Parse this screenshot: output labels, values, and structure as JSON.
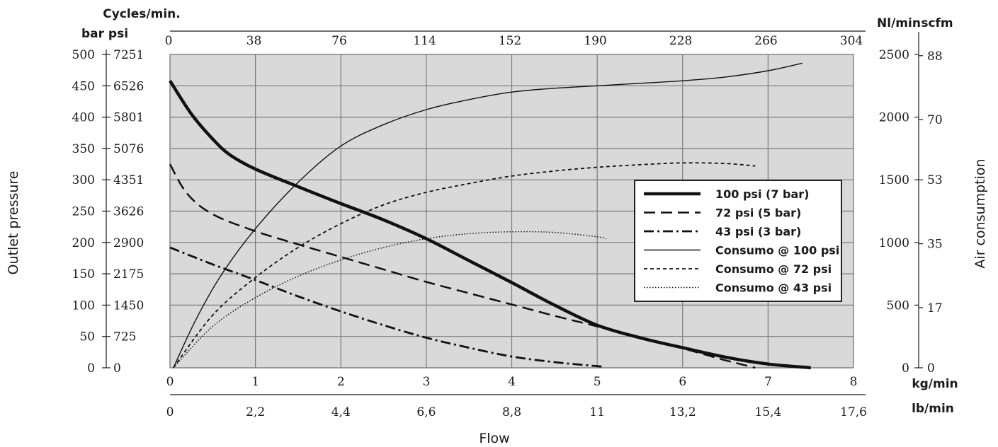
{
  "chart_data": {
    "type": "line",
    "title": "",
    "xlabel": "Flow",
    "ylabel_left": "Outlet pressure",
    "ylabel_right": "Air consumption",
    "x_top_label": "Cycles/min.",
    "x_unit_kg": "kg/min",
    "x_unit_lb": "lb/min",
    "y_left_units": "bar psi",
    "y_right_units": [
      "Nl/min",
      "scfm"
    ],
    "xlim": [
      0,
      8
    ],
    "ylim_bar": [
      0,
      500
    ],
    "ylim_nl": [
      0,
      2500
    ],
    "grid": true,
    "legend_position": "center-right",
    "x_kg_ticks": [
      "0",
      "1",
      "2",
      "3",
      "4",
      "5",
      "6",
      "7",
      "8"
    ],
    "x_lb_ticks": [
      "0",
      "2,2",
      "4,4",
      "6,6",
      "8,8",
      "11",
      "13,2",
      "15,4",
      "17,6"
    ],
    "x_cycles_ticks": [
      "0",
      "38",
      "76",
      "114",
      "152",
      "190",
      "228",
      "266",
      "304"
    ],
    "y_bar_ticks": [
      "0",
      "50",
      "100",
      "150",
      "200",
      "250",
      "300",
      "350",
      "400",
      "450",
      "500"
    ],
    "y_psi_ticks": [
      "0",
      "725",
      "1450",
      "2175",
      "2900",
      "3626",
      "4351",
      "5076",
      "5801",
      "6526",
      "7251"
    ],
    "y_nl_ticks": [
      "0",
      "500",
      "1000",
      "1500",
      "2000",
      "2500"
    ],
    "y_scfm_ticks": [
      {
        "label": "0",
        "nl": 0
      },
      {
        "label": "17",
        "nl": 480
      },
      {
        "label": "35",
        "nl": 990
      },
      {
        "label": "53",
        "nl": 1500
      },
      {
        "label": "70",
        "nl": 1980
      },
      {
        "label": "88",
        "nl": 2490
      }
    ],
    "series": [
      {
        "name": "100 psi (7 bar)",
        "axis": "pressure",
        "style": "thick",
        "x": [
          0,
          0.25,
          0.5,
          0.7,
          1,
          1.5,
          2,
          2.5,
          3,
          3.5,
          4,
          4.5,
          5,
          5.5,
          6,
          6.5,
          7,
          7.5
        ],
        "y": [
          458,
          405,
          365,
          340,
          317,
          289,
          262,
          236,
          206,
          171,
          136,
          100,
          68,
          48,
          32,
          17,
          6,
          0
        ]
      },
      {
        "name": "72 psi (5 bar)",
        "axis": "pressure",
        "style": "dashed",
        "x": [
          0,
          0.2,
          0.5,
          1,
          1.5,
          2,
          2.5,
          3,
          3.5,
          4,
          4.5,
          5,
          5.5,
          6,
          6.5,
          6.85
        ],
        "y": [
          325,
          278,
          245,
          218,
          197,
          177,
          157,
          137,
          119,
          101,
          83,
          66,
          48,
          31,
          12,
          0
        ]
      },
      {
        "name": "43 psi (3 bar)",
        "axis": "pressure",
        "style": "dashdot",
        "x": [
          0,
          0.5,
          1,
          1.5,
          2,
          2.5,
          3,
          3.5,
          4,
          4.5,
          5.05
        ],
        "y": [
          192,
          165,
          140,
          114,
          90,
          68,
          48,
          32,
          18,
          9,
          2
        ]
      },
      {
        "name": "Consumo @ 100 psi",
        "axis": "consumption",
        "style": "solid",
        "x": [
          0.04,
          0.3,
          0.6,
          1,
          1.5,
          2,
          2.5,
          3,
          3.5,
          4,
          4.5,
          5,
          5.5,
          6,
          6.5,
          7,
          7.4
        ],
        "y": [
          0,
          380,
          740,
          1110,
          1480,
          1770,
          1940,
          2060,
          2140,
          2200,
          2230,
          2250,
          2270,
          2290,
          2320,
          2370,
          2430
        ]
      },
      {
        "name": "Consumo @ 72 psi",
        "axis": "consumption",
        "style": "dotted",
        "x": [
          0.04,
          0.5,
          1,
          1.5,
          2,
          2.5,
          3,
          3.5,
          4,
          4.5,
          5,
          5.5,
          6,
          6.5,
          6.85
        ],
        "y": [
          0,
          420,
          720,
          960,
          1150,
          1300,
          1400,
          1470,
          1530,
          1570,
          1600,
          1620,
          1635,
          1630,
          1610
        ]
      },
      {
        "name": "Consumo @ 43 psi",
        "axis": "consumption",
        "style": "fine-dotted",
        "x": [
          0.04,
          0.5,
          1,
          1.5,
          2,
          2.5,
          3,
          3.5,
          4,
          4.5,
          5,
          5.1
        ],
        "y": [
          0,
          330,
          560,
          730,
          860,
          960,
          1030,
          1070,
          1085,
          1080,
          1045,
          1030
        ]
      }
    ]
  },
  "colors": {
    "plot_background": "#d9d9d9",
    "grid": "#7a7a7a",
    "line": "#111111",
    "legend_bg": "#ffffff"
  }
}
